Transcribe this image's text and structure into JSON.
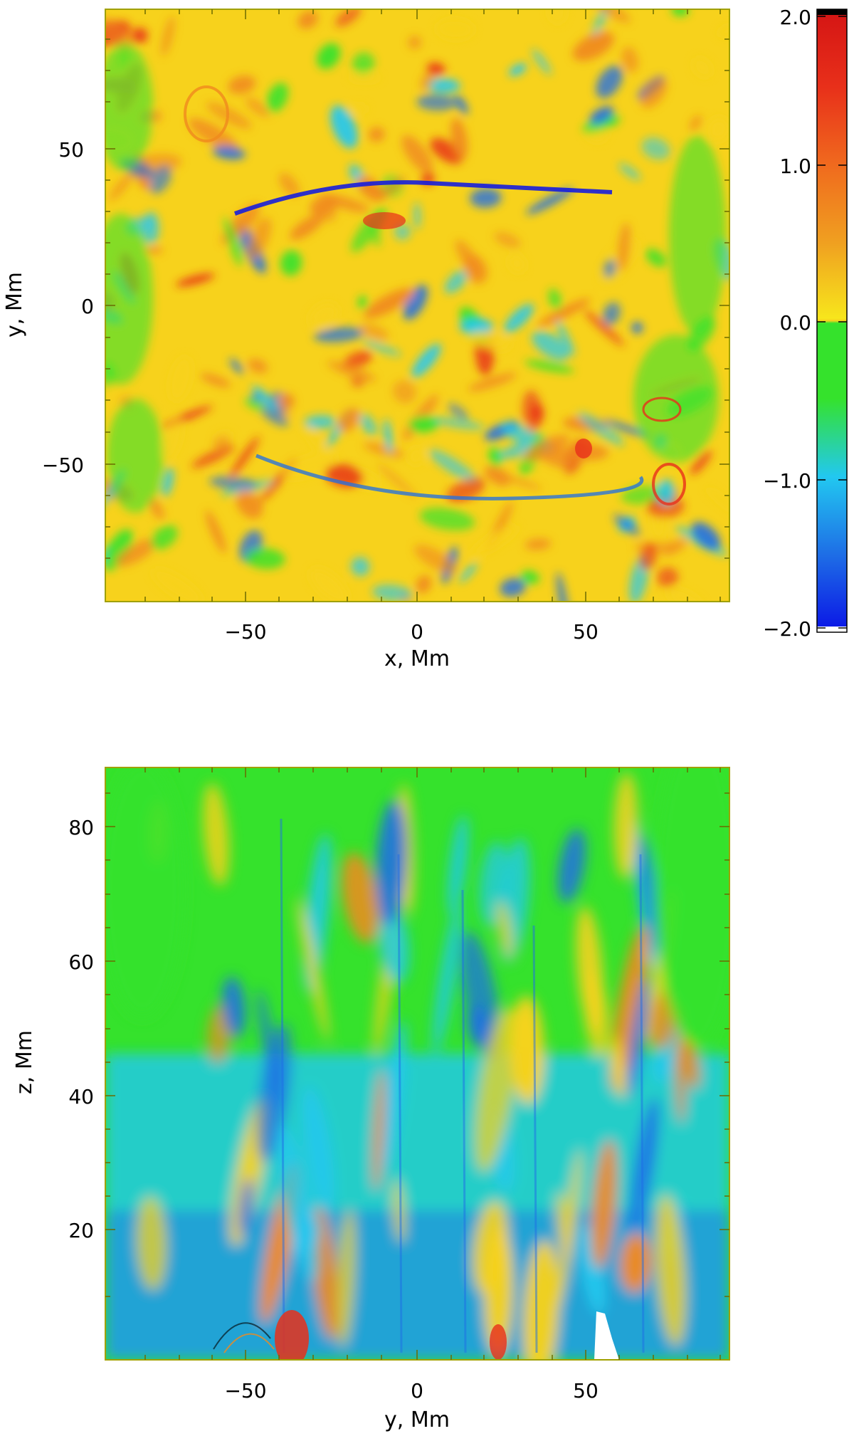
{
  "colors": {
    "yellow": "#f7d21c",
    "orange": "#f08a1e",
    "red": "#e8301a",
    "green": "#35e22c",
    "cyan": "#22c8f0",
    "blue": "#1e6ee6",
    "dark_blue": "#0a14e6",
    "frame": "#a0a000"
  },
  "chart_data": [
    {
      "type": "heatmap",
      "panel": "top",
      "xlabel": "x, Mm",
      "ylabel": "y, Mm",
      "xlim": [
        -92,
        92
      ],
      "ylim": [
        -92,
        92
      ],
      "xticks": [
        -50,
        0,
        50
      ],
      "yticks": [
        -50,
        0,
        50
      ],
      "xtick_labels": [
        "−50",
        "0",
        "50"
      ],
      "ytick_labels": [
        "−50",
        "0",
        "50"
      ]
    },
    {
      "type": "heatmap",
      "panel": "bottom",
      "xlabel": "y, Mm",
      "ylabel": "z, Mm",
      "xlim": [
        -92,
        92
      ],
      "ylim": [
        4,
        92
      ],
      "xticks": [
        -50,
        0,
        50
      ],
      "yticks": [
        20,
        40,
        60,
        80
      ],
      "xtick_labels": [
        "−50",
        "0",
        "50"
      ],
      "ytick_labels": [
        "20",
        "40",
        "60",
        "80"
      ]
    },
    {
      "type": "colorbar",
      "range": [
        -2.0,
        2.0
      ],
      "ticks": [
        2.0,
        1.0,
        0.0,
        -1.0,
        -2.0
      ],
      "tick_labels": [
        "2.0",
        "1.0",
        "0.0",
        "−1.0",
        "−2.0"
      ],
      "colormap": [
        "#0a14e6",
        "#1e6ee6",
        "#22c8f0",
        "#35e22c",
        "#f7d21c",
        "#f0a020",
        "#f06a1e",
        "#e8301a",
        "#d41414"
      ]
    }
  ]
}
